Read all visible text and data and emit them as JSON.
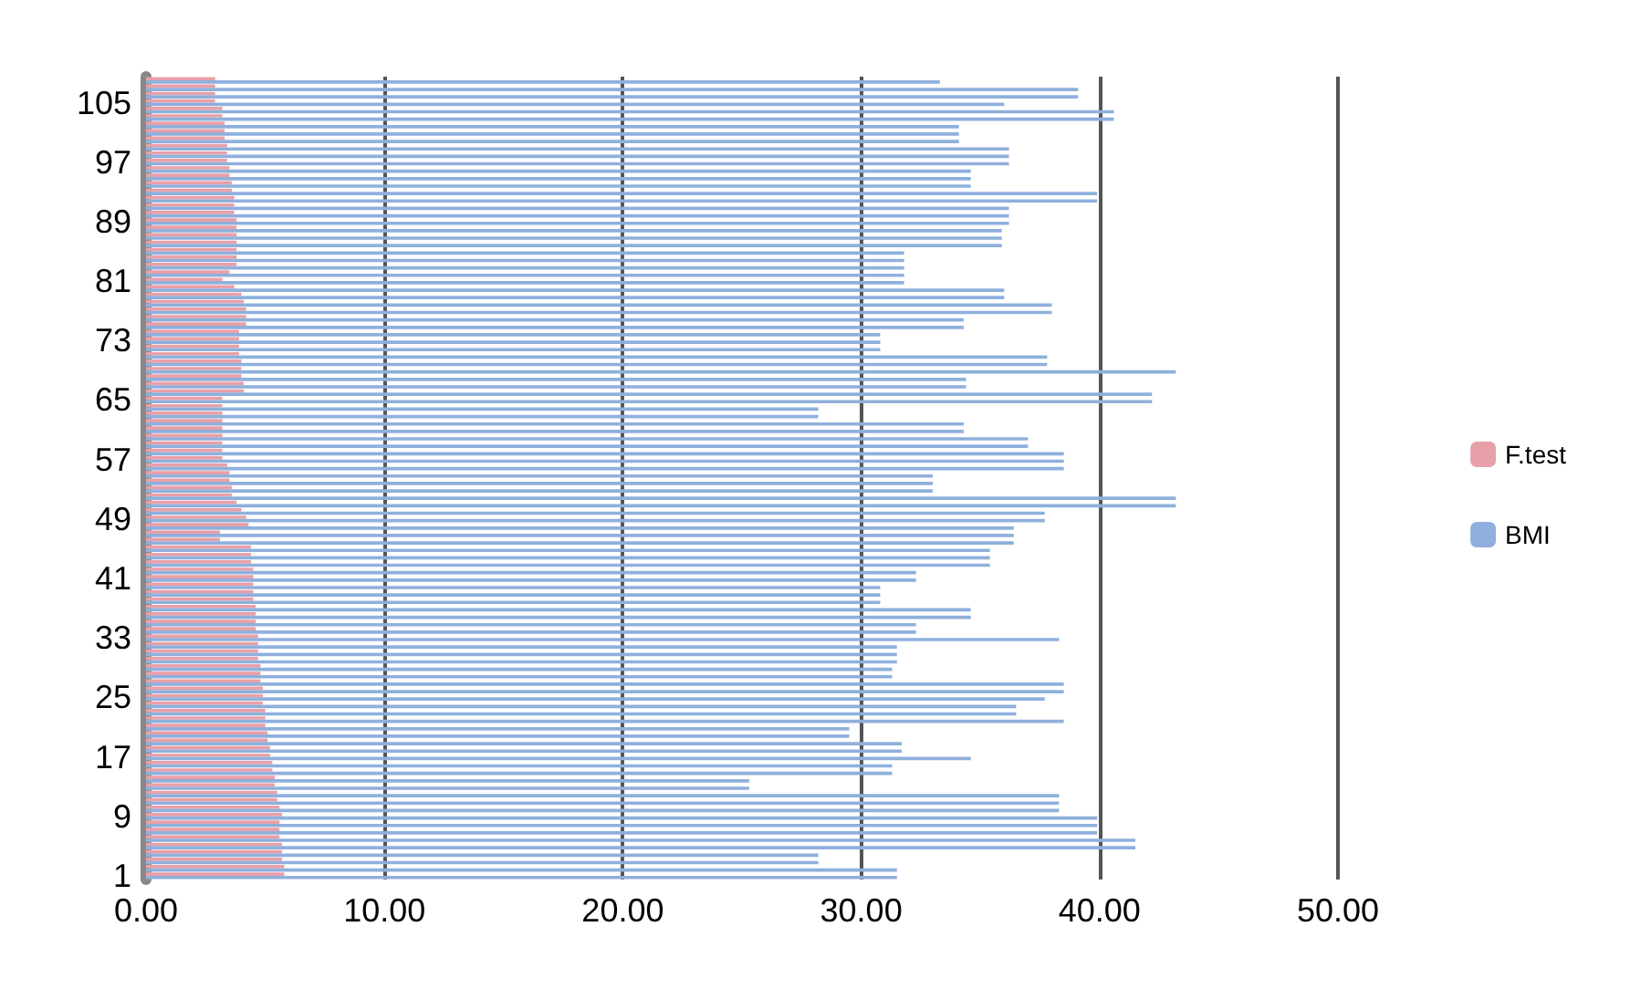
{
  "chart_data": {
    "type": "bar",
    "orientation": "horizontal",
    "categories": [
      null,
      null,
      null,
      "105",
      null,
      null,
      null,
      null,
      null,
      null,
      null,
      "97",
      null,
      null,
      null,
      null,
      null,
      null,
      null,
      "89",
      null,
      null,
      null,
      null,
      null,
      null,
      null,
      "81",
      null,
      null,
      null,
      null,
      null,
      null,
      null,
      "73",
      null,
      null,
      null,
      null,
      null,
      null,
      null,
      "65",
      null,
      null,
      null,
      null,
      null,
      null,
      null,
      "57",
      null,
      null,
      null,
      null,
      null,
      null,
      null,
      "49",
      null,
      null,
      null,
      null,
      null,
      null,
      null,
      "41",
      null,
      null,
      null,
      null,
      null,
      null,
      null,
      "33",
      null,
      null,
      null,
      null,
      null,
      null,
      null,
      "25",
      null,
      null,
      null,
      null,
      null,
      null,
      null,
      "17",
      null,
      null,
      null,
      null,
      null,
      null,
      null,
      "9",
      null,
      null,
      null,
      null,
      null,
      null,
      null,
      "1"
    ],
    "series": [
      {
        "name": "F.test",
        "color": "#e8a0a8",
        "values": [
          2.9,
          2.9,
          2.9,
          2.9,
          3.2,
          3.2,
          3.3,
          3.3,
          3.3,
          3.4,
          3.4,
          3.4,
          3.5,
          3.5,
          3.6,
          3.6,
          3.7,
          3.7,
          3.7,
          3.8,
          3.8,
          3.8,
          3.8,
          3.8,
          3.8,
          3.8,
          3.5,
          3.2,
          3.7,
          4.0,
          4.1,
          4.2,
          4.2,
          4.2,
          3.9,
          3.9,
          3.9,
          3.9,
          4.0,
          4.0,
          4.0,
          4.1,
          4.1,
          3.2,
          3.2,
          3.2,
          3.2,
          3.2,
          3.2,
          3.2,
          3.2,
          3.2,
          3.4,
          3.5,
          3.5,
          3.6,
          3.6,
          3.8,
          4.0,
          4.2,
          4.3,
          3.1,
          3.1,
          4.4,
          4.4,
          4.4,
          4.5,
          4.5,
          4.5,
          4.5,
          4.5,
          4.6,
          4.6,
          4.6,
          4.6,
          4.7,
          4.7,
          4.7,
          4.7,
          4.8,
          4.8,
          4.8,
          4.9,
          4.9,
          4.9,
          5.0,
          5.0,
          5.0,
          5.1,
          5.1,
          5.2,
          5.2,
          5.3,
          5.3,
          5.4,
          5.4,
          5.5,
          5.5,
          5.6,
          5.7,
          5.6,
          5.6,
          5.6,
          5.7,
          5.7,
          5.7,
          5.8,
          5.8
        ]
      },
      {
        "name": "BMI",
        "color": "#8fb0dc",
        "values": [
          33.3,
          39.1,
          39.1,
          36.0,
          40.6,
          40.6,
          34.1,
          34.1,
          34.1,
          36.2,
          36.2,
          36.2,
          34.6,
          34.6,
          34.6,
          39.9,
          39.9,
          36.2,
          36.2,
          36.2,
          35.9,
          35.9,
          35.9,
          31.8,
          31.8,
          31.8,
          31.8,
          31.8,
          36.0,
          36.0,
          38.0,
          38.0,
          34.3,
          34.3,
          30.8,
          30.8,
          30.8,
          37.8,
          37.8,
          43.2,
          34.4,
          34.4,
          42.2,
          42.2,
          28.2,
          28.2,
          34.3,
          34.3,
          37.0,
          37.0,
          38.5,
          38.5,
          38.5,
          33.0,
          33.0,
          33.0,
          43.2,
          43.2,
          37.7,
          37.7,
          36.4,
          36.4,
          36.4,
          35.4,
          35.4,
          35.4,
          32.3,
          32.3,
          30.8,
          30.8,
          30.8,
          34.6,
          34.6,
          32.3,
          32.3,
          38.3,
          31.5,
          31.5,
          31.5,
          31.3,
          31.3,
          38.5,
          38.5,
          37.7,
          36.5,
          36.5,
          38.5,
          29.5,
          29.5,
          31.7,
          31.7,
          34.6,
          31.3,
          31.3,
          25.3,
          25.3,
          38.3,
          38.3,
          38.3,
          39.9,
          39.9,
          39.9,
          41.5,
          41.5,
          28.2,
          28.2,
          31.5,
          31.5
        ]
      }
    ],
    "xlim": [
      0,
      50
    ],
    "xticks": [
      {
        "value": 0,
        "label": "0.00"
      },
      {
        "value": 10,
        "label": "10.00"
      },
      {
        "value": 20,
        "label": "20.00"
      },
      {
        "value": 30,
        "label": "30.00"
      },
      {
        "value": 40,
        "label": "40.00"
      },
      {
        "value": 50,
        "label": "50.00"
      }
    ],
    "grid": "x",
    "legend": "right"
  }
}
